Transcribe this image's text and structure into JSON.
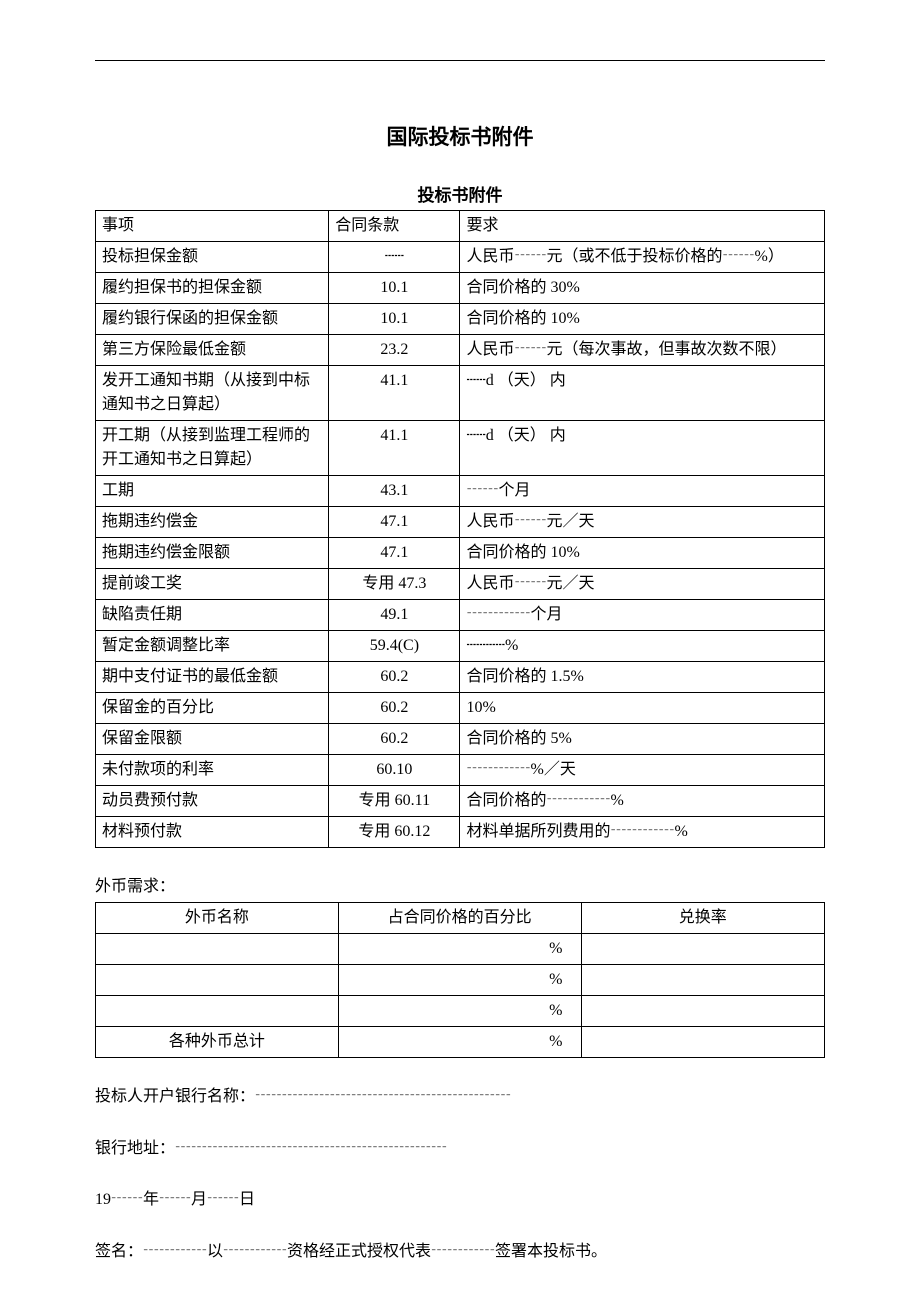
{
  "page": {
    "main_title": "国际投标书附件",
    "sub_title": "投标书附件",
    "background_color": "#ffffff",
    "text_color": "#000000",
    "font_family": "SimSun",
    "base_fontsize": 16,
    "title_fontsize": 21,
    "subtitle_fontsize": 17
  },
  "main_table": {
    "type": "table",
    "columns": [
      "事项",
      "合同条款",
      "要求"
    ],
    "col_widths_pct": [
      32,
      18,
      50
    ],
    "col_align": [
      "left",
      "center",
      "left"
    ],
    "border_color": "#000000",
    "rows": [
      {
        "item": "投标担保金额",
        "clause": "┄┄",
        "req": "人民币┄┄元（或不低于投标价格的┄┄%）"
      },
      {
        "item": "履约担保书的担保金额",
        "clause": "10.1",
        "req": "合同价格的 30%"
      },
      {
        "item": "履约银行保函的担保金额",
        "clause": "10.1",
        "req": "合同价格的 10%"
      },
      {
        "item": "第三方保险最低金额",
        "clause": "23.2",
        "req": "人民币┄┄元（每次事故，但事故次数不限）"
      },
      {
        "item": "发开工通知书期（从接到中标通知书之日算起）",
        "clause": "41.1",
        "req": "┄┄d （天） 内"
      },
      {
        "item": "开工期（从接到监理工程师的开工通知书之日算起）",
        "clause": "41.1",
        "req": "┄┄d （天） 内"
      },
      {
        "item": "工期",
        "clause": "43.1",
        "req": "┄┄个月"
      },
      {
        "item": "拖期违约偿金",
        "clause": "47.1",
        "req": "人民币┄┄元／天"
      },
      {
        "item": "拖期违约偿金限额",
        "clause": "47.1",
        "req": "合同价格的 10%"
      },
      {
        "item": "提前竣工奖",
        "clause": "专用 47.3",
        "req": "人民币┄┄元／天"
      },
      {
        "item": "缺陷责任期",
        "clause": "49.1",
        "req": "┄┄┄┄个月"
      },
      {
        "item": "暂定金额调整比率",
        "clause": "59.4(C)",
        "req": "┄┄┄┄%"
      },
      {
        "item": "期中支付证书的最低金额",
        "clause": "60.2",
        "req": "合同价格的 1.5%"
      },
      {
        "item": "保留金的百分比",
        "clause": "60.2",
        "req": "10%"
      },
      {
        "item": "保留金限额",
        "clause": "60.2",
        "req": "合同价格的 5%"
      },
      {
        "item": "未付款项的利率",
        "clause": "60.10",
        "req": "┄┄┄┄%／天"
      },
      {
        "item": "动员费预付款",
        "clause": "专用 60.11",
        "req": "合同价格的┄┄┄┄%"
      },
      {
        "item": "材料预付款",
        "clause": "专用 60.12",
        "req": "材料单据所列费用的┄┄┄┄%"
      }
    ]
  },
  "currency_section": {
    "label": "外币需求：",
    "table": {
      "type": "table",
      "columns": [
        "外币名称",
        "占合同价格的百分比",
        "兑换率"
      ],
      "col_widths_pct": [
        33.3,
        33.3,
        33.4
      ],
      "border_color": "#000000",
      "rows": [
        {
          "name": "",
          "pct": "%",
          "rate": ""
        },
        {
          "name": "",
          "pct": "%",
          "rate": ""
        },
        {
          "name": "",
          "pct": "%",
          "rate": ""
        },
        {
          "name": "各种外币总计",
          "pct": "%",
          "rate": ""
        }
      ]
    }
  },
  "footer": {
    "bank_name_label": "投标人开户银行名称：┄┄┄┄┄┄┄┄┄┄┄┄┄┄┄┄",
    "bank_address_label": "银行地址：┄┄┄┄┄┄┄┄┄┄┄┄┄┄┄┄┄",
    "date_line": "19┄┄年┄┄月┄┄日",
    "signature_line": "签名：┄┄┄┄以┄┄┄┄资格经正式授权代表┄┄┄┄签署本投标书。"
  }
}
